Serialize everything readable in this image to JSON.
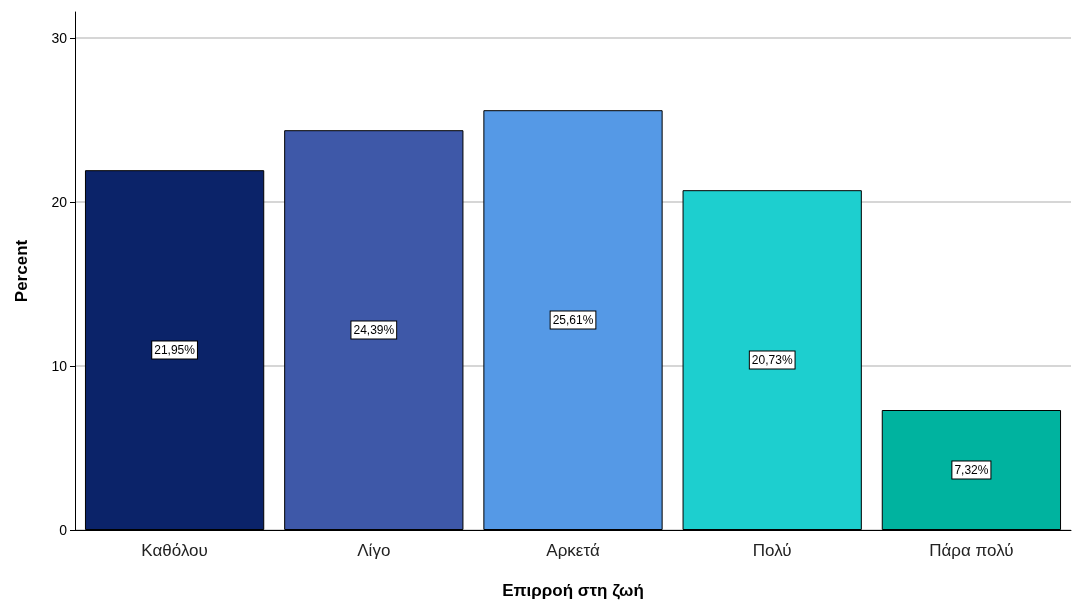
{
  "chart_data": {
    "type": "bar",
    "xlabel": "Επιρροή στη ζωή",
    "ylabel": "Percent",
    "categories": [
      "Καθόλου",
      "Λίγο",
      "Αρκετά",
      "Πολύ",
      "Πάρα πολύ"
    ],
    "values": [
      21.95,
      24.39,
      25.61,
      20.73,
      7.32
    ],
    "value_labels": [
      "21,95%",
      "24,39%",
      "25,61%",
      "20,73%",
      "7,32%"
    ],
    "colors": [
      "#0b2369",
      "#3e58a8",
      "#5599e6",
      "#1dcfcf",
      "#00b39f"
    ],
    "ylim": [
      0,
      31.6
    ],
    "yticks": [
      0,
      10,
      20,
      30
    ],
    "grid": "y"
  }
}
